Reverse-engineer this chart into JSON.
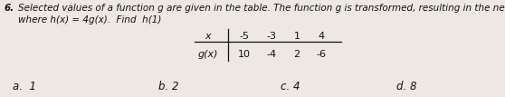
{
  "question_number": "6.",
  "text_line1": "Selected values of a function g are given in the table. The function g is transformed, resulting in the new function, h,",
  "text_line2": "where h(x) = 4g(x).  Find  h(1)",
  "table_x_label": "x",
  "table_g_label": "g(x)",
  "table_x_vals": [
    "-5",
    "-3",
    "1",
    "4"
  ],
  "table_g_vals": [
    "10",
    "-4",
    "2",
    "-6"
  ],
  "choices": [
    "a.  1",
    "b. 2",
    "c. 4",
    "d. 8"
  ],
  "background_color": "#ede8e1",
  "text_color": "#111111",
  "font_size_main": 7.5,
  "font_size_table": 8.0,
  "font_size_choice": 8.5
}
